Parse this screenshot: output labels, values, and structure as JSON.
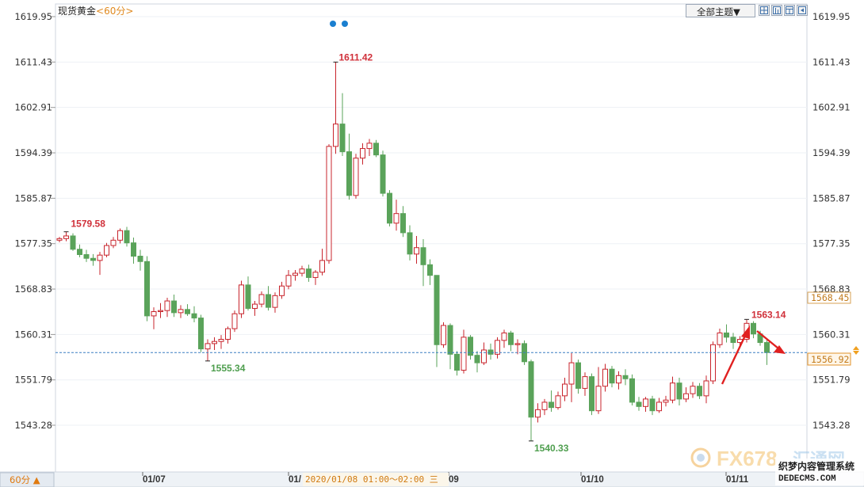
{
  "header": {
    "symbol": "现货黄金",
    "period_label": "<60分>"
  },
  "toolbar": {
    "theme_select": "全部主题▼"
  },
  "footer": {
    "period_toggle": "60分 ▲",
    "crosshair_time": "2020/01/08 01:00～02:00 三",
    "date_ticks": [
      "01/07",
      "01/",
      "09",
      "01/10",
      "01/11"
    ]
  },
  "indicators": {
    "current_price": "1556.92",
    "prev_label": "1568.45",
    "high_label": "1611.42",
    "low_label": "1540.33",
    "left_high_label": "1579.58",
    "left_low_label": "1555.34",
    "right_high_label": "1563.14"
  },
  "watermark": {
    "brand": "FX678",
    "brand_cn": "汇通网",
    "site_cn": "织梦内容管理系统",
    "site_url": "DEDECMS.COM"
  },
  "colors": {
    "up": "#c8242c",
    "down": "#5aa35a",
    "price_line": "#3a7fc2",
    "arrow": "#e02020"
  },
  "chart_data": {
    "type": "candlestick",
    "y_ticks": [
      "1619.95",
      "1611.43",
      "1602.91",
      "1594.39",
      "1585.87",
      "1577.35",
      "1568.83",
      "1560.31",
      "1551.79",
      "1543.28"
    ],
    "ylim": [
      1539.0,
      1620.5
    ],
    "candles": [
      [
        1578.0,
        1578.6,
        1577.6,
        1578.3
      ],
      [
        1578.3,
        1579.58,
        1577.8,
        1578.8
      ],
      [
        1578.8,
        1579.3,
        1576.0,
        1576.3
      ],
      [
        1576.3,
        1577.2,
        1574.8,
        1575.3
      ],
      [
        1575.3,
        1576.2,
        1573.9,
        1574.6
      ],
      [
        1574.6,
        1575.4,
        1573.2,
        1574.2
      ],
      [
        1574.2,
        1575.8,
        1571.5,
        1575.2
      ],
      [
        1575.2,
        1577.5,
        1574.8,
        1577.0
      ],
      [
        1577.0,
        1578.6,
        1576.5,
        1578.0
      ],
      [
        1578.0,
        1580.2,
        1577.4,
        1579.8
      ],
      [
        1579.8,
        1580.5,
        1576.8,
        1577.5
      ],
      [
        1577.5,
        1578.5,
        1573.6,
        1575.0
      ],
      [
        1575.0,
        1576.2,
        1572.3,
        1574.0
      ],
      [
        1574.0,
        1575.0,
        1562.8,
        1563.8
      ],
      [
        1563.8,
        1565.4,
        1561.3,
        1564.6
      ],
      [
        1564.6,
        1566.2,
        1563.4,
        1564.8
      ],
      [
        1564.8,
        1567.2,
        1563.6,
        1566.6
      ],
      [
        1566.6,
        1567.8,
        1563.6,
        1564.4
      ],
      [
        1564.4,
        1565.8,
        1563.4,
        1565.0
      ],
      [
        1565.0,
        1566.0,
        1563.8,
        1564.2
      ],
      [
        1564.2,
        1565.6,
        1562.6,
        1563.4
      ],
      [
        1563.4,
        1564.0,
        1557.0,
        1557.6
      ],
      [
        1557.6,
        1559.4,
        1555.34,
        1558.6
      ],
      [
        1558.6,
        1559.8,
        1557.4,
        1559.0
      ],
      [
        1559.0,
        1560.2,
        1557.6,
        1559.4
      ],
      [
        1559.4,
        1561.8,
        1558.6,
        1561.4
      ],
      [
        1561.4,
        1564.8,
        1560.8,
        1564.2
      ],
      [
        1564.2,
        1570.4,
        1563.4,
        1569.6
      ],
      [
        1569.6,
        1571.2,
        1564.8,
        1565.2
      ],
      [
        1565.2,
        1566.6,
        1563.8,
        1566.0
      ],
      [
        1566.0,
        1568.4,
        1565.4,
        1567.8
      ],
      [
        1567.8,
        1569.4,
        1564.8,
        1565.4
      ],
      [
        1565.4,
        1568.2,
        1564.4,
        1567.6
      ],
      [
        1567.6,
        1570.2,
        1567.0,
        1569.4
      ],
      [
        1569.4,
        1572.4,
        1568.8,
        1571.4
      ],
      [
        1571.4,
        1572.4,
        1570.4,
        1571.8
      ],
      [
        1571.8,
        1573.2,
        1571.2,
        1572.6
      ],
      [
        1572.6,
        1573.4,
        1570.2,
        1571.0
      ],
      [
        1571.0,
        1572.4,
        1569.6,
        1572.0
      ],
      [
        1572.0,
        1576.4,
        1571.4,
        1574.2
      ],
      [
        1574.2,
        1596.0,
        1573.6,
        1595.6
      ],
      [
        1595.6,
        1611.42,
        1594.2,
        1599.8
      ],
      [
        1599.8,
        1605.6,
        1593.8,
        1594.6
      ],
      [
        1594.6,
        1598.0,
        1585.6,
        1586.4
      ],
      [
        1586.4,
        1594.2,
        1585.8,
        1593.4
      ],
      [
        1593.4,
        1596.2,
        1592.2,
        1595.2
      ],
      [
        1595.2,
        1597.0,
        1593.8,
        1596.2
      ],
      [
        1596.2,
        1596.8,
        1593.6,
        1594.0
      ],
      [
        1594.0,
        1594.8,
        1586.2,
        1586.8
      ],
      [
        1586.8,
        1587.4,
        1580.6,
        1581.2
      ],
      [
        1581.2,
        1585.6,
        1579.8,
        1583.0
      ],
      [
        1583.0,
        1584.4,
        1578.6,
        1579.4
      ],
      [
        1579.4,
        1580.8,
        1574.2,
        1575.4
      ],
      [
        1575.4,
        1578.8,
        1573.6,
        1576.6
      ],
      [
        1576.6,
        1578.2,
        1569.4,
        1573.4
      ],
      [
        1573.4,
        1574.4,
        1569.6,
        1571.4
      ],
      [
        1571.4,
        1571.4,
        1554.2,
        1558.4
      ],
      [
        1558.4,
        1562.6,
        1557.8,
        1562.0
      ],
      [
        1562.0,
        1562.4,
        1553.8,
        1556.6
      ],
      [
        1556.6,
        1557.2,
        1552.6,
        1553.6
      ],
      [
        1553.6,
        1561.2,
        1553.0,
        1559.8
      ],
      [
        1559.8,
        1560.2,
        1555.6,
        1556.4
      ],
      [
        1556.4,
        1557.2,
        1553.2,
        1555.0
      ],
      [
        1555.0,
        1558.8,
        1554.6,
        1557.4
      ],
      [
        1557.4,
        1558.6,
        1555.6,
        1556.6
      ],
      [
        1556.6,
        1559.8,
        1555.8,
        1559.2
      ],
      [
        1559.2,
        1561.2,
        1557.8,
        1560.6
      ],
      [
        1560.6,
        1561.0,
        1557.2,
        1558.4
      ],
      [
        1558.4,
        1559.4,
        1556.6,
        1558.6
      ],
      [
        1558.6,
        1559.2,
        1554.6,
        1555.2
      ],
      [
        1555.2,
        1555.6,
        1540.33,
        1544.8
      ],
      [
        1544.8,
        1547.4,
        1543.8,
        1546.2
      ],
      [
        1546.2,
        1548.2,
        1545.2,
        1547.6
      ],
      [
        1547.6,
        1549.8,
        1545.8,
        1546.6
      ],
      [
        1546.6,
        1549.6,
        1546.2,
        1548.8
      ],
      [
        1548.8,
        1552.2,
        1547.8,
        1551.0
      ],
      [
        1551.0,
        1556.8,
        1547.6,
        1555.0
      ],
      [
        1555.0,
        1555.6,
        1549.2,
        1550.2
      ],
      [
        1550.2,
        1553.2,
        1548.8,
        1552.4
      ],
      [
        1552.4,
        1553.0,
        1545.2,
        1546.0
      ],
      [
        1546.0,
        1554.2,
        1545.4,
        1550.6
      ],
      [
        1550.6,
        1554.8,
        1549.6,
        1553.8
      ],
      [
        1553.8,
        1554.4,
        1550.4,
        1551.2
      ],
      [
        1551.2,
        1553.4,
        1550.0,
        1552.6
      ],
      [
        1552.6,
        1553.8,
        1550.8,
        1552.0
      ],
      [
        1552.0,
        1552.8,
        1547.0,
        1547.6
      ],
      [
        1547.6,
        1548.6,
        1546.0,
        1546.8
      ],
      [
        1546.8,
        1548.6,
        1545.8,
        1548.2
      ],
      [
        1548.2,
        1548.8,
        1545.2,
        1546.0
      ],
      [
        1546.0,
        1548.4,
        1545.6,
        1547.6
      ],
      [
        1547.6,
        1548.8,
        1546.8,
        1548.0
      ],
      [
        1548.0,
        1552.4,
        1547.4,
        1551.2
      ],
      [
        1551.2,
        1552.2,
        1547.0,
        1548.2
      ],
      [
        1548.2,
        1550.4,
        1547.6,
        1549.2
      ],
      [
        1549.2,
        1551.4,
        1548.4,
        1550.6
      ],
      [
        1550.6,
        1551.2,
        1548.2,
        1548.8
      ],
      [
        1548.8,
        1552.6,
        1547.4,
        1551.6
      ],
      [
        1551.6,
        1559.0,
        1551.0,
        1558.4
      ],
      [
        1558.4,
        1561.4,
        1557.8,
        1560.6
      ],
      [
        1560.6,
        1562.2,
        1558.8,
        1559.8
      ],
      [
        1559.8,
        1560.6,
        1557.6,
        1558.8
      ],
      [
        1558.8,
        1560.0,
        1558.2,
        1559.4
      ],
      [
        1559.4,
        1563.14,
        1558.8,
        1562.4
      ],
      [
        1562.4,
        1562.8,
        1559.6,
        1560.4
      ],
      [
        1560.4,
        1561.0,
        1558.2,
        1558.8
      ],
      [
        1558.8,
        1559.6,
        1554.6,
        1556.92
      ]
    ]
  }
}
